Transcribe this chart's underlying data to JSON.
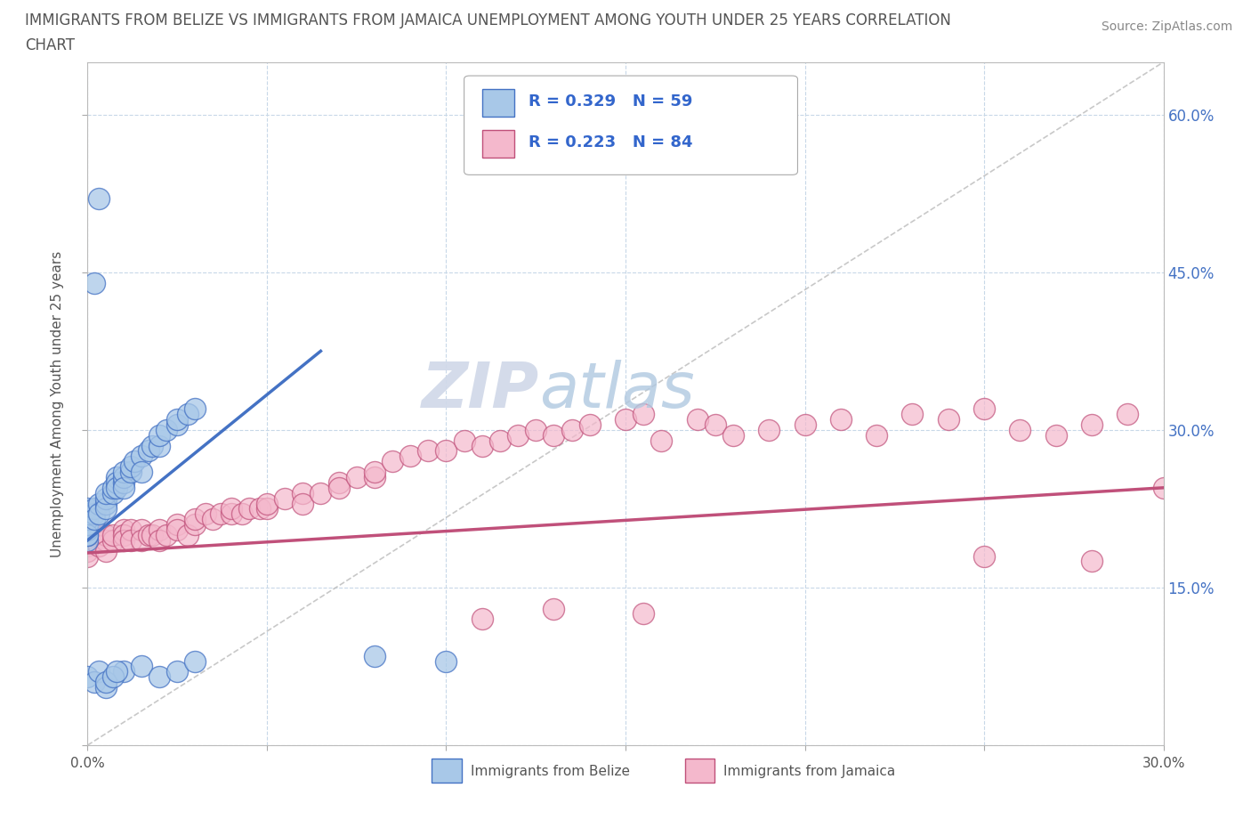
{
  "title_line1": "IMMIGRANTS FROM BELIZE VS IMMIGRANTS FROM JAMAICA UNEMPLOYMENT AMONG YOUTH UNDER 25 YEARS CORRELATION",
  "title_line2": "CHART",
  "source": "Source: ZipAtlas.com",
  "ylabel": "Unemployment Among Youth under 25 years",
  "xlim": [
    0.0,
    0.3
  ],
  "ylim": [
    0.0,
    0.65
  ],
  "belize_R": 0.329,
  "belize_N": 59,
  "jamaica_R": 0.223,
  "jamaica_N": 84,
  "belize_color": "#a8c8e8",
  "belize_edge": "#4472c4",
  "jamaica_color": "#f4b8cc",
  "jamaica_edge": "#c0507a",
  "watermark_zip": "ZIP",
  "watermark_atlas": "atlas",
  "legend_color": "#3366cc",
  "background_color": "#ffffff",
  "grid_color": "#c8d8e8",
  "right_label_color": "#4472c4",
  "belize_line_x": [
    0.0,
    0.065
  ],
  "belize_line_y": [
    0.195,
    0.375
  ],
  "jamaica_line_x": [
    0.0,
    0.3
  ],
  "jamaica_line_y": [
    0.183,
    0.245
  ],
  "dash_line_x": [
    0.0,
    0.3
  ],
  "dash_line_y": [
    0.0,
    0.65
  ]
}
